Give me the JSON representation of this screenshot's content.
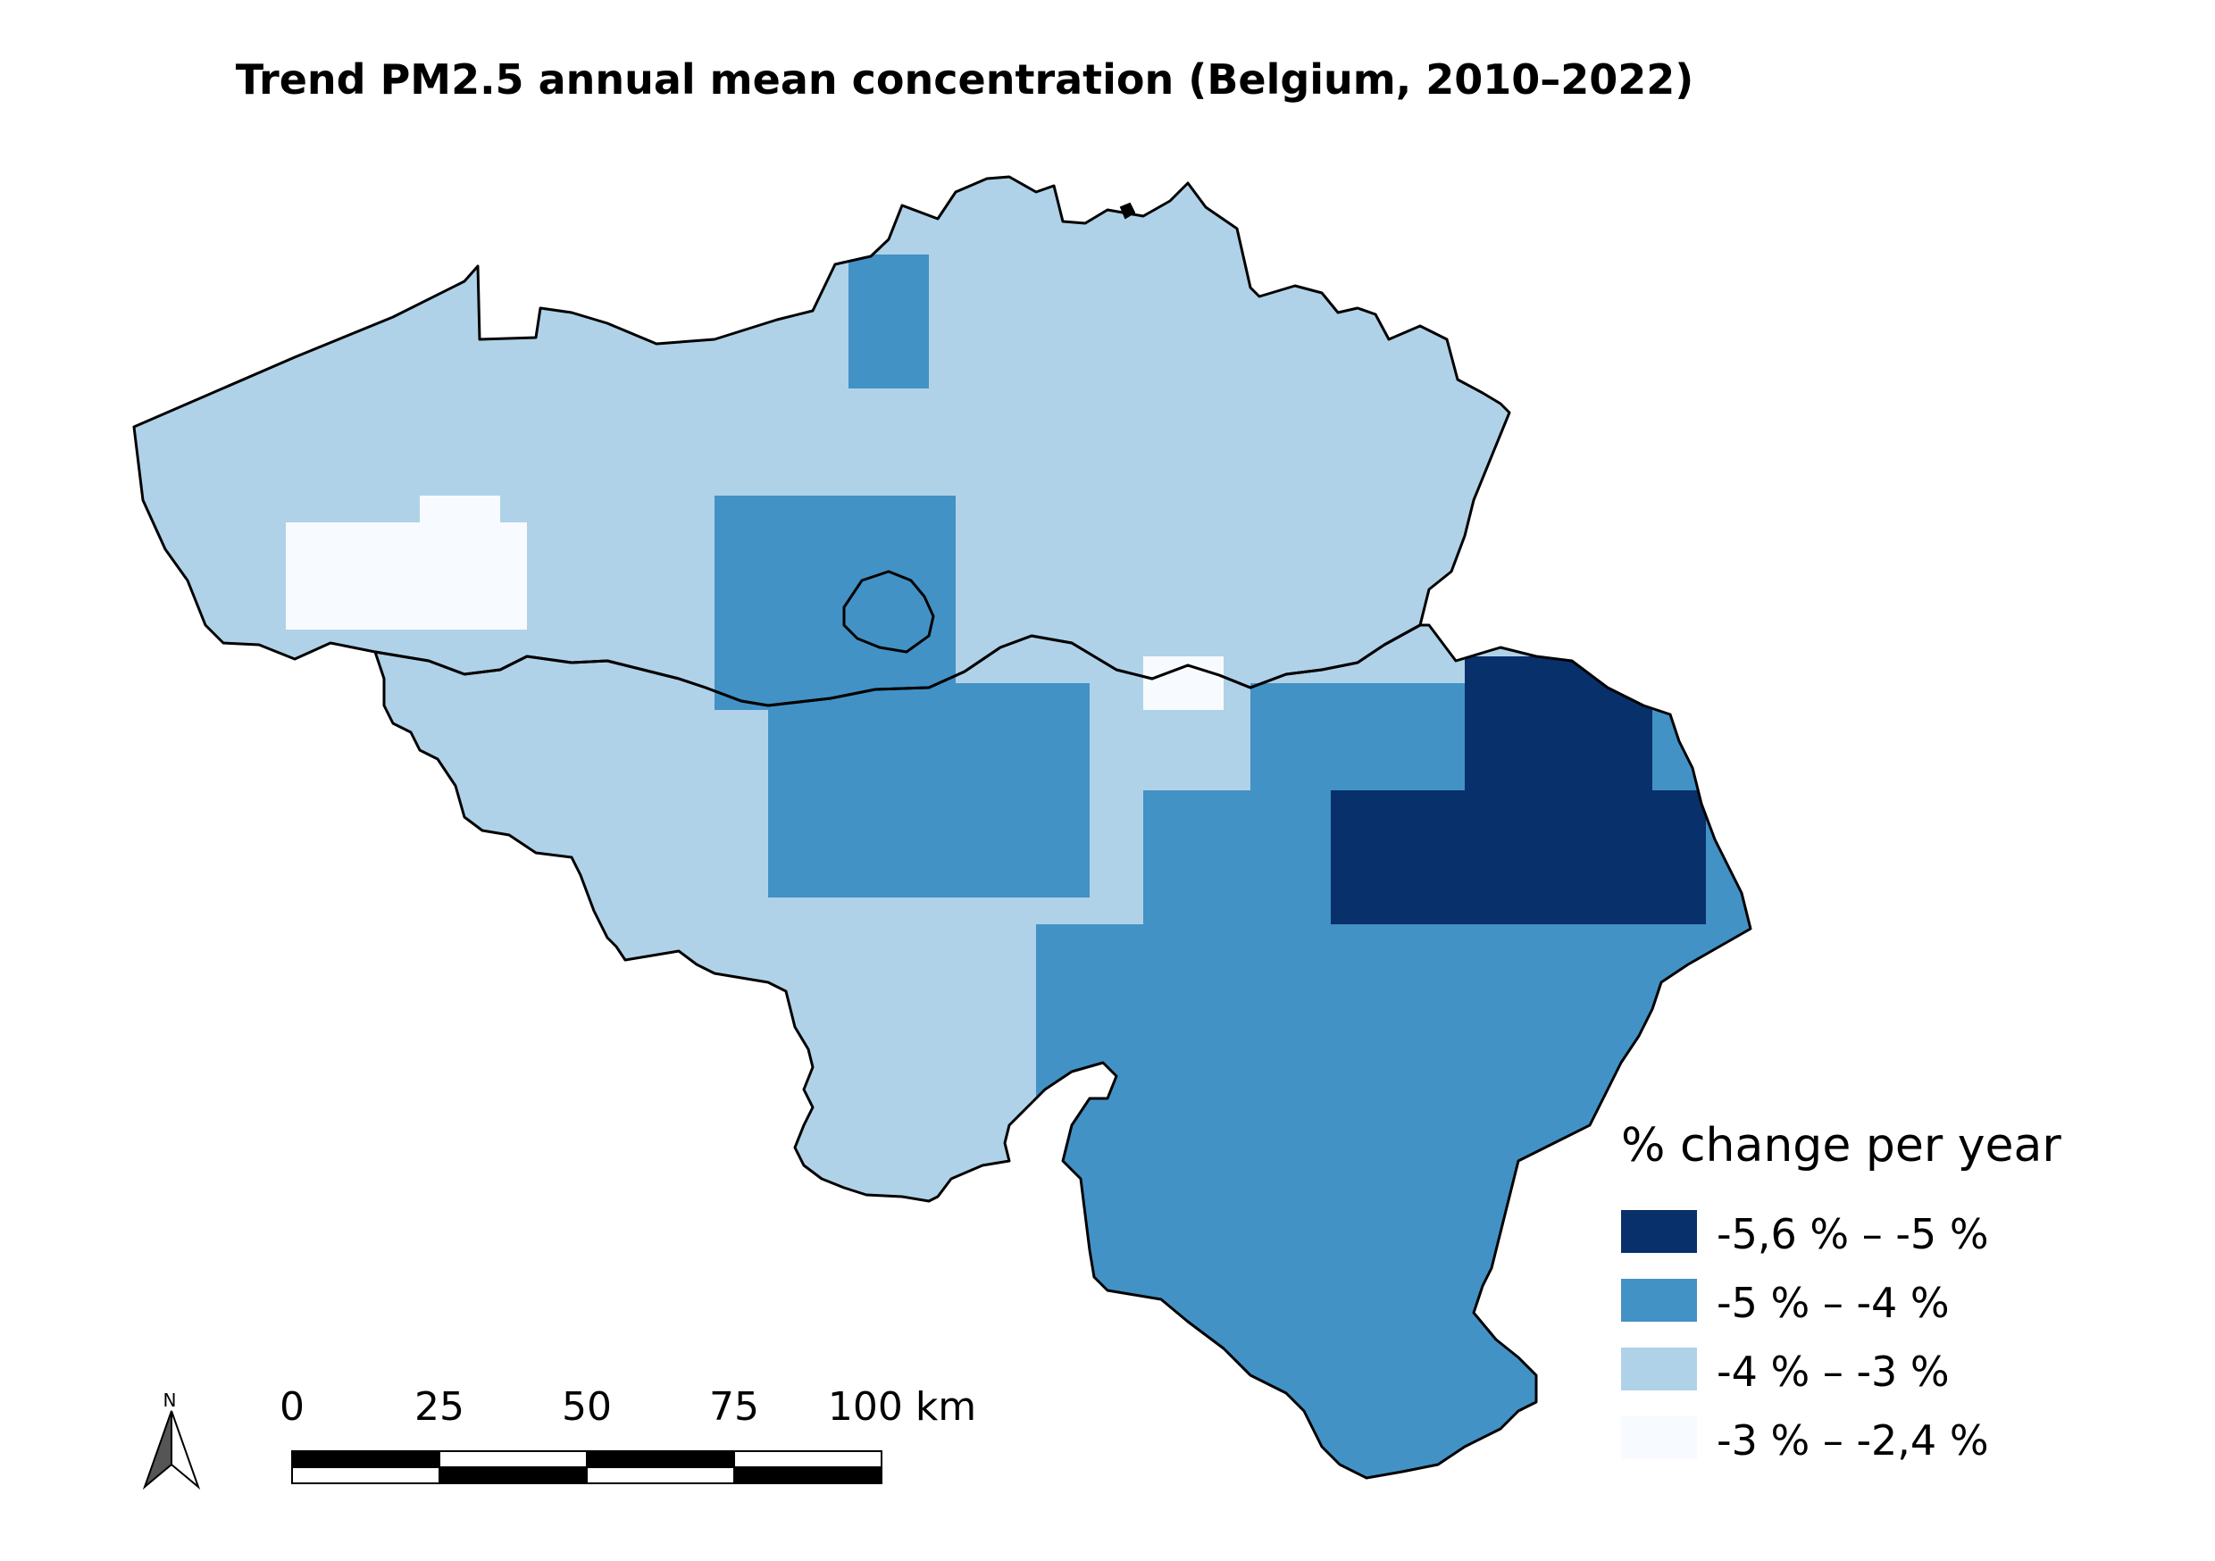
{
  "title": "Trend PM2.5 annual mean concentration (Belgium, 2010–2022)",
  "legend": {
    "title": "% change per year",
    "classes": [
      {
        "label": "-5,6 % – -5 %",
        "color": "#08306b"
      },
      {
        "label": "-5 % – -4 %",
        "color": "#4292c6"
      },
      {
        "label": "-4 % – -3 %",
        "color": "#b0d2e8"
      },
      {
        "label": "-3 % – -2,4 %",
        "color": "#f7fbff"
      }
    ]
  },
  "scale_bar": {
    "ticks": [
      "0",
      "25",
      "50",
      "75",
      "100 km"
    ]
  },
  "north_arrow": {
    "label": "N",
    "icon": "north-arrow-icon"
  }
}
